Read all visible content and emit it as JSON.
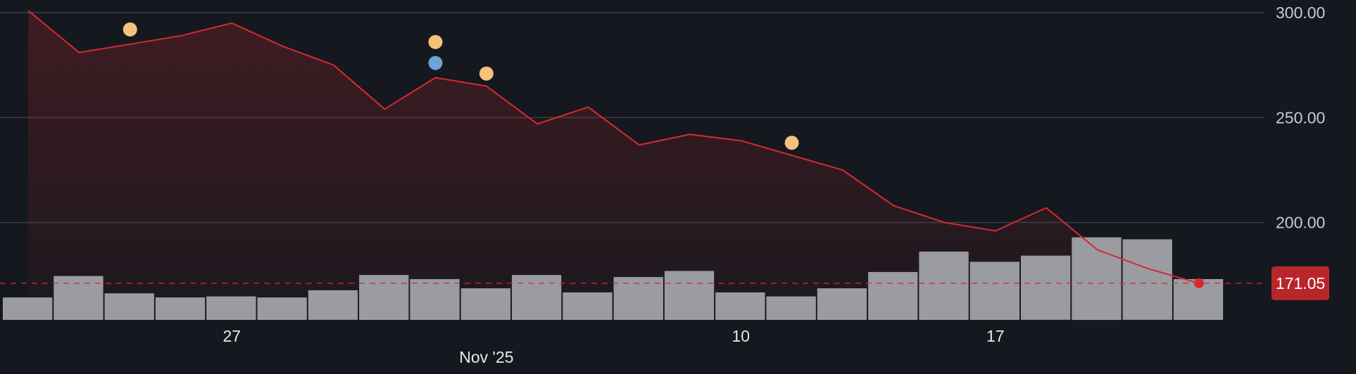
{
  "chart_data": {
    "type": "line",
    "price_series": {
      "values": [
        301,
        281,
        285,
        289,
        295,
        284,
        275,
        254,
        269,
        265,
        247,
        255,
        237,
        242,
        239,
        232,
        225,
        208,
        200,
        196,
        207,
        187,
        178,
        171.05
      ]
    },
    "volume_series": {
      "values": [
        22,
        43,
        26,
        22,
        23,
        22,
        29,
        44,
        40,
        31,
        44,
        27,
        42,
        48,
        27,
        23,
        31,
        47,
        67,
        57,
        63,
        81,
        79,
        40
      ]
    },
    "ylim": [
      170,
      305
    ],
    "yticks": [
      {
        "value": 300,
        "label": "300.00"
      },
      {
        "value": 250,
        "label": "250.00"
      },
      {
        "value": 200,
        "label": "200.00"
      }
    ],
    "xticks": [
      {
        "index": 4,
        "label": "27"
      },
      {
        "index": 14,
        "label": "10"
      },
      {
        "index": 19,
        "label": "17"
      }
    ],
    "month_label": {
      "index": 9,
      "label": "Nov '25"
    },
    "last_price": {
      "value": 171.05,
      "label": "171.05"
    },
    "event_markers": [
      {
        "index": 2.0,
        "value": 292,
        "kind": "earnings",
        "color": "#f4c27a"
      },
      {
        "index": 8.0,
        "value": 286,
        "kind": "earnings",
        "color": "#f4c27a"
      },
      {
        "index": 8.0,
        "value": 276,
        "kind": "dividend",
        "color": "#6fa3d8"
      },
      {
        "index": 9.0,
        "value": 271,
        "kind": "earnings",
        "color": "#f4c27a"
      },
      {
        "index": 15.0,
        "value": 238,
        "kind": "earnings",
        "color": "#f4c27a"
      }
    ],
    "grid": true,
    "colors": {
      "background": "#15181e",
      "line": "#d8292f",
      "volume_bar": "#9a9ca1",
      "price_badge": "#b8262b",
      "grid": "#3c3f45",
      "axis_text": "#c8cbd1"
    }
  }
}
